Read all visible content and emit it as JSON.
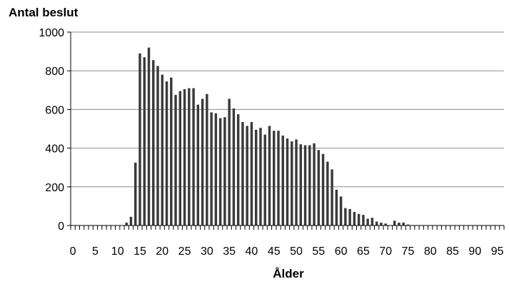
{
  "chart_data": {
    "type": "bar",
    "title": "Antal beslut",
    "xlabel": "Ålder",
    "ylabel": "Antal beslut",
    "ylim": [
      0,
      1000
    ],
    "yticks": [
      0,
      200,
      400,
      600,
      800,
      1000
    ],
    "xticks": [
      0,
      5,
      10,
      15,
      20,
      25,
      30,
      35,
      40,
      45,
      50,
      55,
      60,
      65,
      70,
      75,
      80,
      85,
      90,
      95
    ],
    "grid": true,
    "bar_color": "#3a3a3a",
    "categories": [
      0,
      1,
      2,
      3,
      4,
      5,
      6,
      7,
      8,
      9,
      10,
      11,
      12,
      13,
      14,
      15,
      16,
      17,
      18,
      19,
      20,
      21,
      22,
      23,
      24,
      25,
      26,
      27,
      28,
      29,
      30,
      31,
      32,
      33,
      34,
      35,
      36,
      37,
      38,
      39,
      40,
      41,
      42,
      43,
      44,
      45,
      46,
      47,
      48,
      49,
      50,
      51,
      52,
      53,
      54,
      55,
      56,
      57,
      58,
      59,
      60,
      61,
      62,
      63,
      64,
      65,
      66,
      67,
      68,
      69,
      70,
      71,
      72,
      73,
      74,
      75,
      76,
      77,
      78,
      79,
      80,
      81,
      82,
      83,
      84,
      85,
      86,
      87,
      88,
      89,
      90,
      91,
      92,
      93,
      94,
      95,
      96
    ],
    "values": [
      0,
      0,
      0,
      0,
      0,
      0,
      0,
      0,
      0,
      0,
      0,
      0,
      15,
      45,
      325,
      890,
      870,
      920,
      855,
      825,
      780,
      745,
      765,
      675,
      695,
      705,
      710,
      710,
      625,
      655,
      680,
      585,
      580,
      555,
      560,
      655,
      605,
      575,
      535,
      515,
      535,
      495,
      505,
      470,
      515,
      490,
      490,
      465,
      450,
      435,
      445,
      420,
      415,
      415,
      425,
      390,
      370,
      330,
      290,
      185,
      150,
      90,
      85,
      70,
      60,
      55,
      35,
      40,
      20,
      15,
      10,
      0,
      25,
      15,
      15,
      5,
      0,
      0,
      0,
      0,
      0,
      0,
      0,
      0,
      0,
      0,
      0,
      0,
      0,
      0,
      0,
      0,
      0,
      0,
      0,
      0,
      0
    ]
  }
}
